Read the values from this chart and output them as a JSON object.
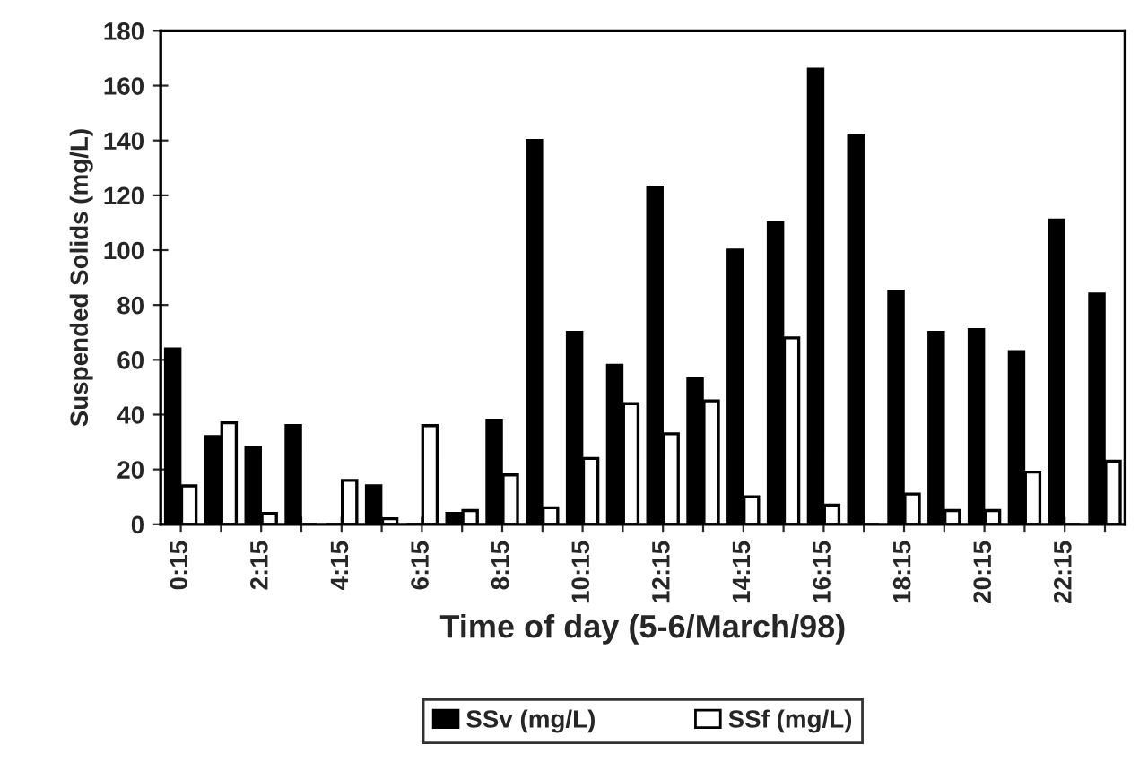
{
  "chart_data": {
    "type": "bar",
    "xlabel": "Time of day (5-6/March/98)",
    "ylabel": "Suspended Solids (mg/L)",
    "categories": [
      "0:15",
      null,
      "2:15",
      null,
      "4:15",
      null,
      "6:15",
      null,
      "8:15",
      null,
      "10:15",
      null,
      "12:15",
      null,
      "14:15",
      null,
      "16:15",
      null,
      "18:15",
      null,
      "20:15",
      null,
      "22:15",
      null
    ],
    "series": [
      {
        "name": "SSv (mg/L)",
        "color": "#000000",
        "values": [
          64,
          32,
          28,
          36,
          0,
          14,
          0,
          4,
          38,
          140,
          70,
          58,
          123,
          53,
          100,
          110,
          166,
          142,
          85,
          70,
          71,
          63,
          111,
          84
        ]
      },
      {
        "name": "SSf (mg/L)",
        "color": "#ffffff",
        "values": [
          14,
          37,
          4,
          0,
          16,
          2,
          36,
          5,
          18,
          6,
          24,
          44,
          33,
          45,
          10,
          68,
          7,
          0,
          11,
          5,
          5,
          19,
          0,
          23
        ]
      }
    ],
    "ylim": [
      0,
      180
    ],
    "yticks": [
      0,
      20,
      40,
      60,
      80,
      100,
      120,
      140,
      160,
      180
    ],
    "grid": false,
    "legend": "bottom"
  }
}
